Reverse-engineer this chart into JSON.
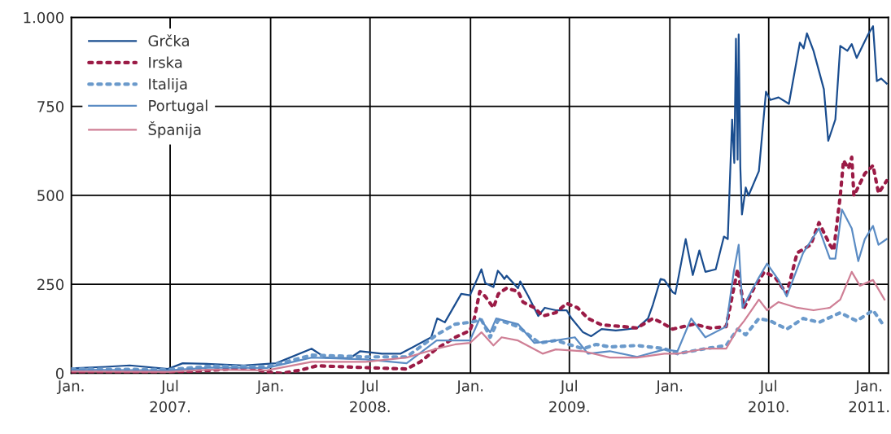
{
  "chart_data": {
    "type": "line",
    "xlim": [
      "2007-01-01",
      "2011-02-05"
    ],
    "ylim": [
      0,
      1000
    ],
    "yticks": [
      0,
      250,
      500,
      750,
      {
        "value": 1000,
        "label": "1.000"
      }
    ],
    "xticks": [
      {
        "value": "2007-01-01",
        "label": "Jan."
      },
      {
        "value": "2007-07-01",
        "label": "Jul\n2007."
      },
      {
        "value": "2008-01-01",
        "label": "Jan."
      },
      {
        "value": "2008-07-01",
        "label": "Jul\n2008."
      },
      {
        "value": "2009-01-01",
        "label": "Jan."
      },
      {
        "value": "2009-07-01",
        "label": "Jul\n2009."
      },
      {
        "value": "2010-01-01",
        "label": "Jan."
      },
      {
        "value": "2010-07-01",
        "label": "Jul\n2010."
      },
      {
        "value": "2011-01-01",
        "label": "Jan.\n2011."
      }
    ],
    "grid": true,
    "legend": "top left",
    "series": [
      {
        "name": "Grčka",
        "color": "#1a4d8f",
        "line_style": "solid",
        "x": [
          "2007-01-01",
          "2007-03-05",
          "2007-04-18",
          "2007-06-27",
          "2007-07-24",
          "2007-09-14",
          "2007-11-13",
          "2008-01-11",
          "2008-03-16",
          "2008-04-10",
          "2008-05-25",
          "2008-06-13",
          "2008-07-23",
          "2008-08-26",
          "2008-10-21",
          "2008-11-01",
          "2008-11-15",
          "2008-12-15",
          "2008-12-31",
          "2009-01-21",
          "2009-01-28",
          "2009-02-12",
          "2009-02-20",
          "2009-02-27",
          "2009-03-04",
          "2009-03-08",
          "2009-03-29",
          "2009-04-02",
          "2009-04-17",
          "2009-05-05",
          "2009-05-17",
          "2009-06-06",
          "2009-06-26",
          "2009-07-05",
          "2009-07-26",
          "2009-08-10",
          "2009-08-29",
          "2009-09-24",
          "2009-11-02",
          "2009-11-22",
          "2009-12-01",
          "2009-12-15",
          "2009-12-22",
          "2010-01-06",
          "2010-01-11",
          "2010-01-30",
          "2010-02-12",
          "2010-02-24",
          "2010-03-07",
          "2010-03-26",
          "2010-04-10",
          "2010-04-17",
          "2010-04-25",
          "2010-04-29",
          "2010-05-02",
          "2010-05-05",
          "2010-05-07",
          "2010-05-10",
          "2010-05-13",
          "2010-05-20",
          "2010-05-25",
          "2010-06-13",
          "2010-06-26",
          "2010-07-04",
          "2010-07-19",
          "2010-08-07",
          "2010-08-27",
          "2010-09-03",
          "2010-09-09",
          "2010-09-21",
          "2010-10-10",
          "2010-10-18",
          "2010-10-31",
          "2010-11-09",
          "2010-11-22",
          "2010-11-30",
          "2010-12-09",
          "2010-12-30",
          "2011-01-08",
          "2011-01-15",
          "2011-01-23",
          "2011-02-02"
        ],
        "values": [
          14,
          18,
          22,
          12,
          28,
          26,
          22,
          28,
          69,
          44,
          42,
          62,
          55,
          55,
          101,
          154,
          143,
          223,
          219,
          292,
          253,
          242,
          288,
          276,
          265,
          274,
          239,
          258,
          216,
          161,
          184,
          177,
          177,
          154,
          115,
          104,
          124,
          120,
          127,
          154,
          193,
          265,
          262,
          228,
          223,
          377,
          276,
          345,
          285,
          292,
          384,
          377,
          713,
          591,
          940,
          600,
          952,
          580,
          446,
          522,
          499,
          568,
          791,
          768,
          775,
          757,
          929,
          913,
          955,
          906,
          798,
          653,
          713,
          920,
          906,
          925,
          886,
          952,
          975,
          821,
          828,
          814
        ]
      },
      {
        "name": "Irska",
        "color": "#9b1b46",
        "line_style": "dotted",
        "x": [
          "2007-01-01",
          "2007-06-27",
          "2007-09-14",
          "2007-11-23",
          "2007-12-25",
          "2008-01-22",
          "2008-02-25",
          "2008-03-26",
          "2008-06-19",
          "2008-09-06",
          "2008-10-01",
          "2008-10-31",
          "2008-12-04",
          "2008-12-31",
          "2009-01-08",
          "2009-01-18",
          "2009-01-28",
          "2009-02-12",
          "2009-02-21",
          "2009-03-08",
          "2009-03-29",
          "2009-04-07",
          "2009-04-28",
          "2009-05-13",
          "2009-06-06",
          "2009-06-26",
          "2009-07-16",
          "2009-08-04",
          "2009-08-29",
          "2009-10-09",
          "2009-11-02",
          "2009-12-01",
          "2009-12-16",
          "2010-01-06",
          "2010-02-14",
          "2010-03-16",
          "2010-04-14",
          "2010-05-05",
          "2010-05-17",
          "2010-06-04",
          "2010-06-23",
          "2010-07-13",
          "2010-08-03",
          "2010-08-22",
          "2010-09-16",
          "2010-10-01",
          "2010-10-21",
          "2010-10-28",
          "2010-11-09",
          "2010-11-15",
          "2010-11-24",
          "2010-11-30",
          "2010-12-04",
          "2010-12-24",
          "2011-01-08",
          "2011-01-18",
          "2011-02-02"
        ],
        "values": [
          2,
          3,
          8,
          16,
          3,
          0,
          9,
          21,
          16,
          12,
          32,
          69,
          101,
          120,
          154,
          230,
          216,
          184,
          223,
          239,
          230,
          200,
          184,
          161,
          170,
          196,
          184,
          154,
          136,
          131,
          127,
          154,
          143,
          124,
          138,
          127,
          131,
          292,
          184,
          239,
          285,
          269,
          223,
          338,
          361,
          423,
          361,
          345,
          499,
          598,
          575,
          607,
          499,
          561,
          584,
          506,
          541
        ]
      },
      {
        "name": "Italija",
        "color": "#6b9acb",
        "line_style": "dotted",
        "x": [
          "2007-01-01",
          "2007-06-27",
          "2007-09-14",
          "2007-12-25",
          "2008-03-16",
          "2008-06-23",
          "2008-09-06",
          "2008-10-31",
          "2008-12-04",
          "2008-12-31",
          "2009-01-21",
          "2009-02-06",
          "2009-02-21",
          "2009-03-29",
          "2009-05-07",
          "2009-06-06",
          "2009-07-26",
          "2009-08-19",
          "2009-09-13",
          "2009-11-02",
          "2009-12-22",
          "2010-01-15",
          "2010-03-07",
          "2010-04-14",
          "2010-05-05",
          "2010-05-20",
          "2010-06-13",
          "2010-07-04",
          "2010-08-03",
          "2010-09-02",
          "2010-10-01",
          "2010-11-09",
          "2010-12-09",
          "2011-01-08",
          "2011-01-29"
        ],
        "values": [
          12,
          10,
          20,
          18,
          51,
          46,
          46,
          108,
          138,
          143,
          150,
          101,
          150,
          131,
          85,
          92,
          69,
          81,
          74,
          78,
          69,
          55,
          69,
          78,
          124,
          108,
          154,
          147,
          124,
          154,
          143,
          170,
          147,
          177,
          131
        ]
      },
      {
        "name": "Portugal",
        "color": "#5b8cc4",
        "line_style": "solid",
        "x": [
          "2007-01-01",
          "2007-06-27",
          "2007-09-14",
          "2007-12-25",
          "2008-03-16",
          "2008-06-23",
          "2008-09-06",
          "2008-10-31",
          "2008-12-31",
          "2009-01-18",
          "2009-02-06",
          "2009-02-17",
          "2009-03-29",
          "2009-04-28",
          "2009-06-06",
          "2009-07-11",
          "2009-08-04",
          "2009-09-13",
          "2009-11-02",
          "2009-12-22",
          "2010-01-15",
          "2010-02-09",
          "2010-03-07",
          "2010-04-14",
          "2010-04-28",
          "2010-05-07",
          "2010-05-14",
          "2010-06-13",
          "2010-06-28",
          "2010-07-19",
          "2010-08-03",
          "2010-09-02",
          "2010-10-01",
          "2010-10-21",
          "2010-10-31",
          "2010-11-12",
          "2010-11-30",
          "2010-12-12",
          "2010-12-24",
          "2011-01-08",
          "2011-01-18",
          "2011-02-02"
        ],
        "values": [
          10,
          8,
          16,
          15,
          44,
          39,
          28,
          92,
          92,
          154,
          115,
          154,
          138,
          85,
          92,
          101,
          55,
          62,
          46,
          67,
          62,
          154,
          101,
          131,
          285,
          361,
          184,
          269,
          308,
          262,
          216,
          338,
          407,
          322,
          322,
          460,
          407,
          315,
          377,
          414,
          361,
          377
        ]
      },
      {
        "name": "Španija",
        "color": "#cf7f95",
        "line_style": "solid",
        "x": [
          "2007-01-01",
          "2007-06-27",
          "2007-09-14",
          "2007-12-25",
          "2008-03-16",
          "2008-06-23",
          "2008-09-06",
          "2008-10-31",
          "2008-12-04",
          "2008-12-31",
          "2009-01-21",
          "2009-02-12",
          "2009-02-27",
          "2009-03-29",
          "2009-05-13",
          "2009-06-06",
          "2009-07-26",
          "2009-09-13",
          "2009-11-02",
          "2009-12-22",
          "2010-01-15",
          "2010-03-07",
          "2010-04-14",
          "2010-05-05",
          "2010-05-17",
          "2010-06-13",
          "2010-06-28",
          "2010-07-19",
          "2010-08-22",
          "2010-09-21",
          "2010-10-21",
          "2010-11-09",
          "2010-11-30",
          "2010-12-15",
          "2011-01-08",
          "2011-01-29"
        ],
        "values": [
          5,
          4,
          10,
          8,
          32,
          32,
          44,
          69,
          81,
          85,
          115,
          78,
          101,
          92,
          55,
          67,
          62,
          44,
          44,
          55,
          55,
          69,
          69,
          124,
          147,
          207,
          177,
          200,
          184,
          177,
          184,
          207,
          285,
          246,
          262,
          207
        ]
      }
    ]
  }
}
